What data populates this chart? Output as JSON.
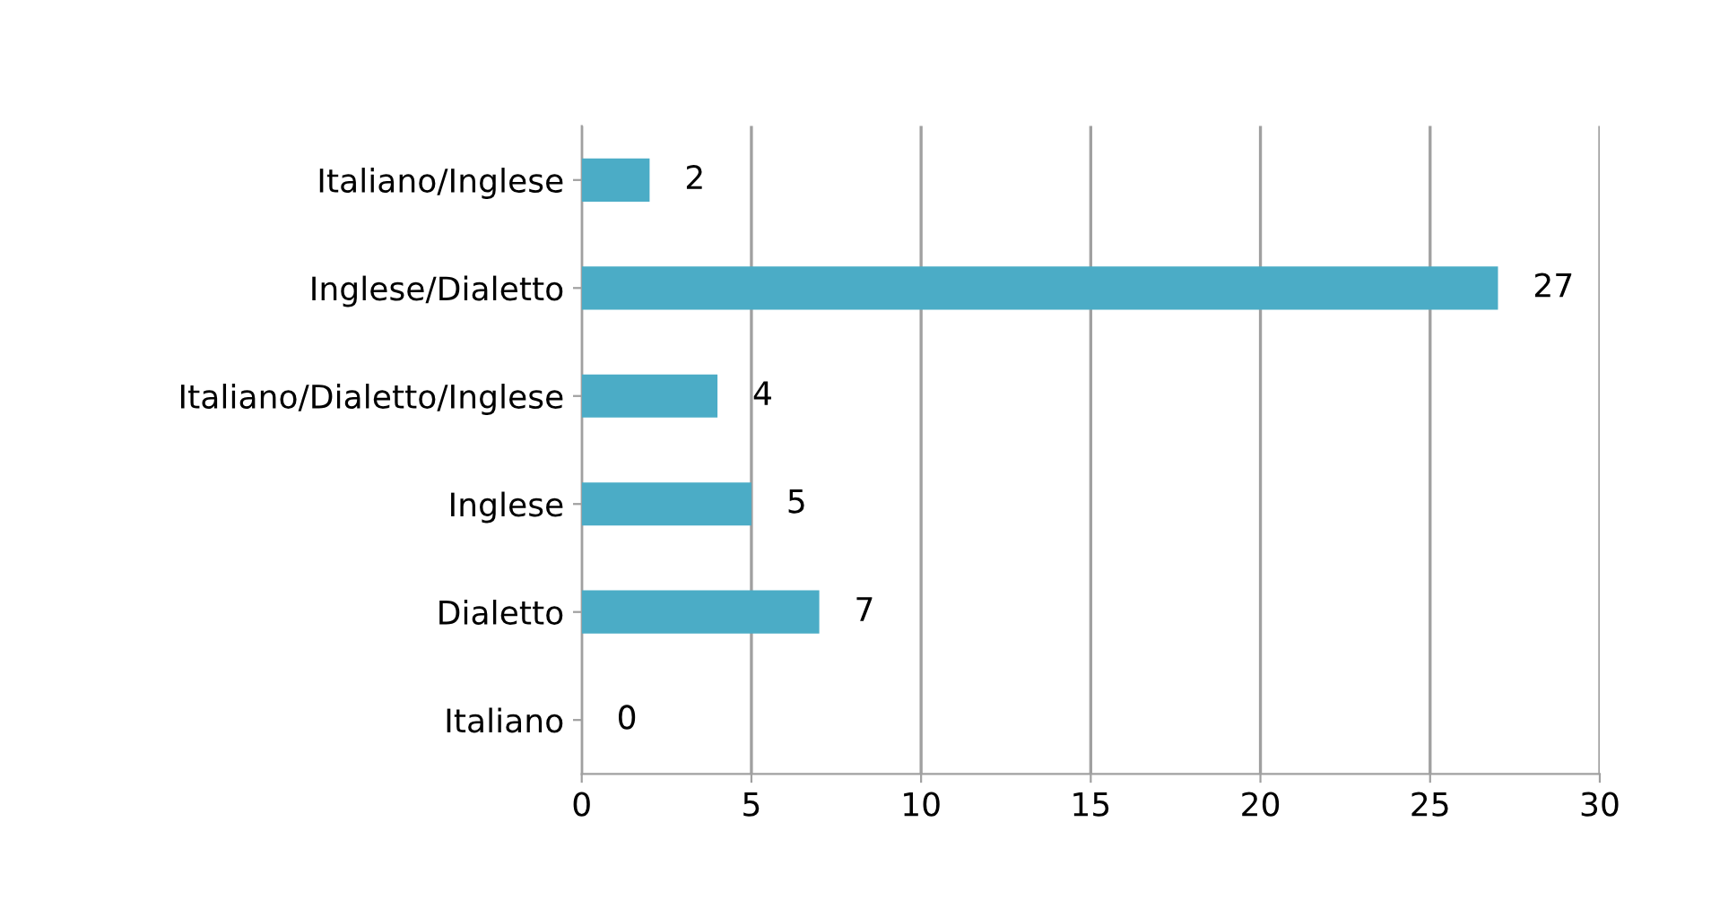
{
  "chart_data": {
    "type": "bar",
    "orientation": "horizontal",
    "categories": [
      "Italiano/Inglese",
      "Inglese/Dialetto",
      "Italiano/Dialetto/Inglese",
      "Inglese",
      "Dialetto",
      "Italiano"
    ],
    "values": [
      2,
      27,
      4,
      5,
      7,
      0
    ],
    "color": "#4bacc6",
    "xlim": [
      0,
      30
    ],
    "xticks": [
      0,
      5,
      10,
      15,
      20,
      25,
      30
    ],
    "grid": "x",
    "data_labels": true,
    "legend": false
  }
}
